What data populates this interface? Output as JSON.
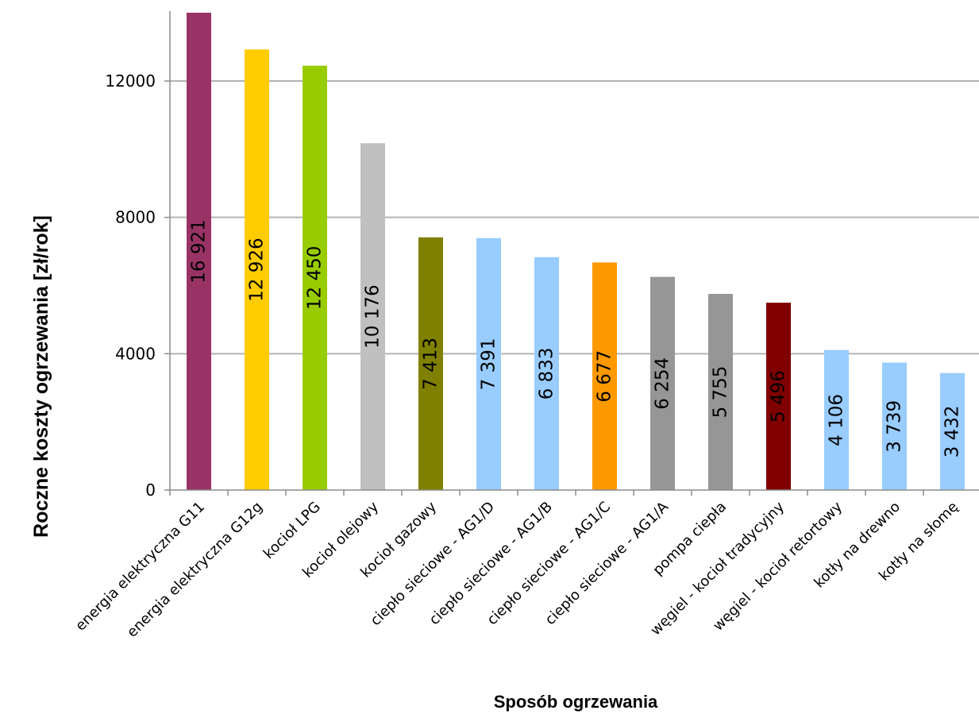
{
  "chart_data": {
    "type": "bar",
    "title": "",
    "xlabel": "Sposób ogrzewania",
    "ylabel": "Roczne koszty ogrzewania [zł/rok]",
    "ylim": [
      0,
      14000
    ],
    "yticks": [
      0,
      4000,
      8000,
      12000
    ],
    "grid": true,
    "legend": "none",
    "categories": [
      "energia elektryczna G11",
      "energia elektryczna G12g",
      "kocioł LPG",
      "kocioł olejowy",
      "kocioł gazowy",
      "ciepło sieciowe - AG1/D",
      "ciepło sieciowe - AG1/B",
      "ciepło sieciowe - AG1/C",
      "ciepło sieciowe - AG1/A",
      "pompa ciepła",
      "węgiel - kocioł tradycyjny",
      "węgiel - kocioł retortowy",
      "kotły na drewno",
      "kotły na słomę"
    ],
    "values": [
      16921,
      12926,
      12450,
      10176,
      7413,
      7391,
      6833,
      6677,
      6254,
      5755,
      5496,
      4106,
      3739,
      3432
    ],
    "value_labels": [
      "16 921",
      "12 926",
      "12 450",
      "10 176",
      "7 413",
      "7 391",
      "6 833",
      "6 677",
      "6 254",
      "5 755",
      "5 496",
      "4 106",
      "3 739",
      "3 432"
    ],
    "colors": [
      "#993366",
      "#FFCC00",
      "#99CC00",
      "#C0C0C0",
      "#808000",
      "#99CCFF",
      "#99CCFF",
      "#FF9900",
      "#969696",
      "#969696",
      "#800000",
      "#99CCFF",
      "#99CCFF",
      "#99CCFF"
    ]
  }
}
